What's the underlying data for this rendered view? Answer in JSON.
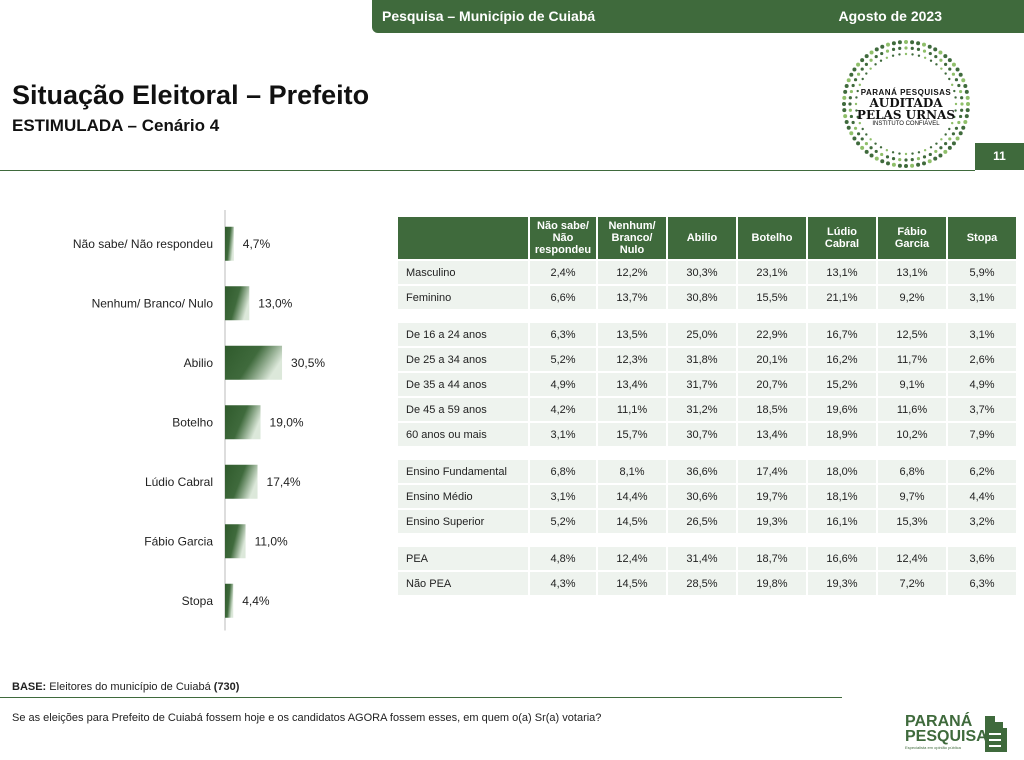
{
  "header": {
    "left": "Pesquisa – Município de Cuiabá",
    "right": "Agosto de 2023"
  },
  "title": "Situação Eleitoral – Prefeito",
  "subtitle": "ESTIMULADA – Cenário 4",
  "page_number": "11",
  "seal": {
    "line1": "PARANÁ PESQUISAS",
    "line2": "AUDITADA",
    "line3": "PELAS URNAS",
    "line4": "INSTITUTO CONFIÁVEL"
  },
  "colors": {
    "brand_green": "#3f6a3c",
    "row_bg": "#eef3ee"
  },
  "chart_data": {
    "type": "bar",
    "orientation": "horizontal",
    "categories": [
      "Não sabe/ Não respondeu",
      "Nenhum/ Branco/ Nulo",
      "Abilio",
      "Botelho",
      "Lúdio Cabral",
      "Fábio Garcia",
      "Stopa"
    ],
    "values": [
      4.7,
      13.0,
      30.5,
      19.0,
      17.4,
      11.0,
      4.4
    ],
    "value_labels": [
      "4,7%",
      "13,0%",
      "30,5%",
      "19,0%",
      "17,4%",
      "11,0%",
      "4,4%"
    ],
    "title": "",
    "xlabel": "",
    "ylabel": "",
    "xlim": [
      0,
      100
    ],
    "grid": false,
    "legend": "none"
  },
  "table": {
    "columns": [
      "Não sabe/ Não respondeu",
      "Nenhum/ Branco/ Nulo",
      "Abilio",
      "Botelho",
      "Lúdio Cabral",
      "Fábio Garcia",
      "Stopa"
    ],
    "groups": [
      {
        "rows": [
          {
            "label": "Masculino",
            "values": [
              "2,4%",
              "12,2%",
              "30,3%",
              "23,1%",
              "13,1%",
              "13,1%",
              "5,9%"
            ]
          },
          {
            "label": "Feminino",
            "values": [
              "6,6%",
              "13,7%",
              "30,8%",
              "15,5%",
              "21,1%",
              "9,2%",
              "3,1%"
            ]
          }
        ]
      },
      {
        "rows": [
          {
            "label": "De 16 a 24 anos",
            "values": [
              "6,3%",
              "13,5%",
              "25,0%",
              "22,9%",
              "16,7%",
              "12,5%",
              "3,1%"
            ]
          },
          {
            "label": "De 25 a 34 anos",
            "values": [
              "5,2%",
              "12,3%",
              "31,8%",
              "20,1%",
              "16,2%",
              "11,7%",
              "2,6%"
            ]
          },
          {
            "label": "De 35 a 44 anos",
            "values": [
              "4,9%",
              "13,4%",
              "31,7%",
              "20,7%",
              "15,2%",
              "9,1%",
              "4,9%"
            ]
          },
          {
            "label": "De 45 a 59 anos",
            "values": [
              "4,2%",
              "11,1%",
              "31,2%",
              "18,5%",
              "19,6%",
              "11,6%",
              "3,7%"
            ]
          },
          {
            "label": "60 anos ou mais",
            "values": [
              "3,1%",
              "15,7%",
              "30,7%",
              "13,4%",
              "18,9%",
              "10,2%",
              "7,9%"
            ]
          }
        ]
      },
      {
        "rows": [
          {
            "label": "Ensino Fundamental",
            "values": [
              "6,8%",
              "8,1%",
              "36,6%",
              "17,4%",
              "18,0%",
              "6,8%",
              "6,2%"
            ]
          },
          {
            "label": "Ensino Médio",
            "values": [
              "3,1%",
              "14,4%",
              "30,6%",
              "19,7%",
              "18,1%",
              "9,7%",
              "4,4%"
            ]
          },
          {
            "label": "Ensino Superior",
            "values": [
              "5,2%",
              "14,5%",
              "26,5%",
              "19,3%",
              "16,1%",
              "15,3%",
              "3,2%"
            ]
          }
        ]
      },
      {
        "rows": [
          {
            "label": "PEA",
            "values": [
              "4,8%",
              "12,4%",
              "31,4%",
              "18,7%",
              "16,6%",
              "12,4%",
              "3,6%"
            ]
          },
          {
            "label": "Não PEA",
            "values": [
              "4,3%",
              "14,5%",
              "28,5%",
              "19,8%",
              "19,3%",
              "7,2%",
              "6,3%"
            ]
          }
        ]
      }
    ]
  },
  "footer": {
    "base_label": "BASE:",
    "base_text": " Eleitores do município de Cuiabá ",
    "base_count": "(730)",
    "question": "Se as eleições para Prefeito de Cuiabá fossem hoje e os candidatos AGORA fossem esses, em quem o(a) Sr(a) votaria?"
  },
  "logo": {
    "line1": "PARANÁ",
    "line2": "PESQUISAS",
    "tagline": "Especialista em opinião pública"
  }
}
